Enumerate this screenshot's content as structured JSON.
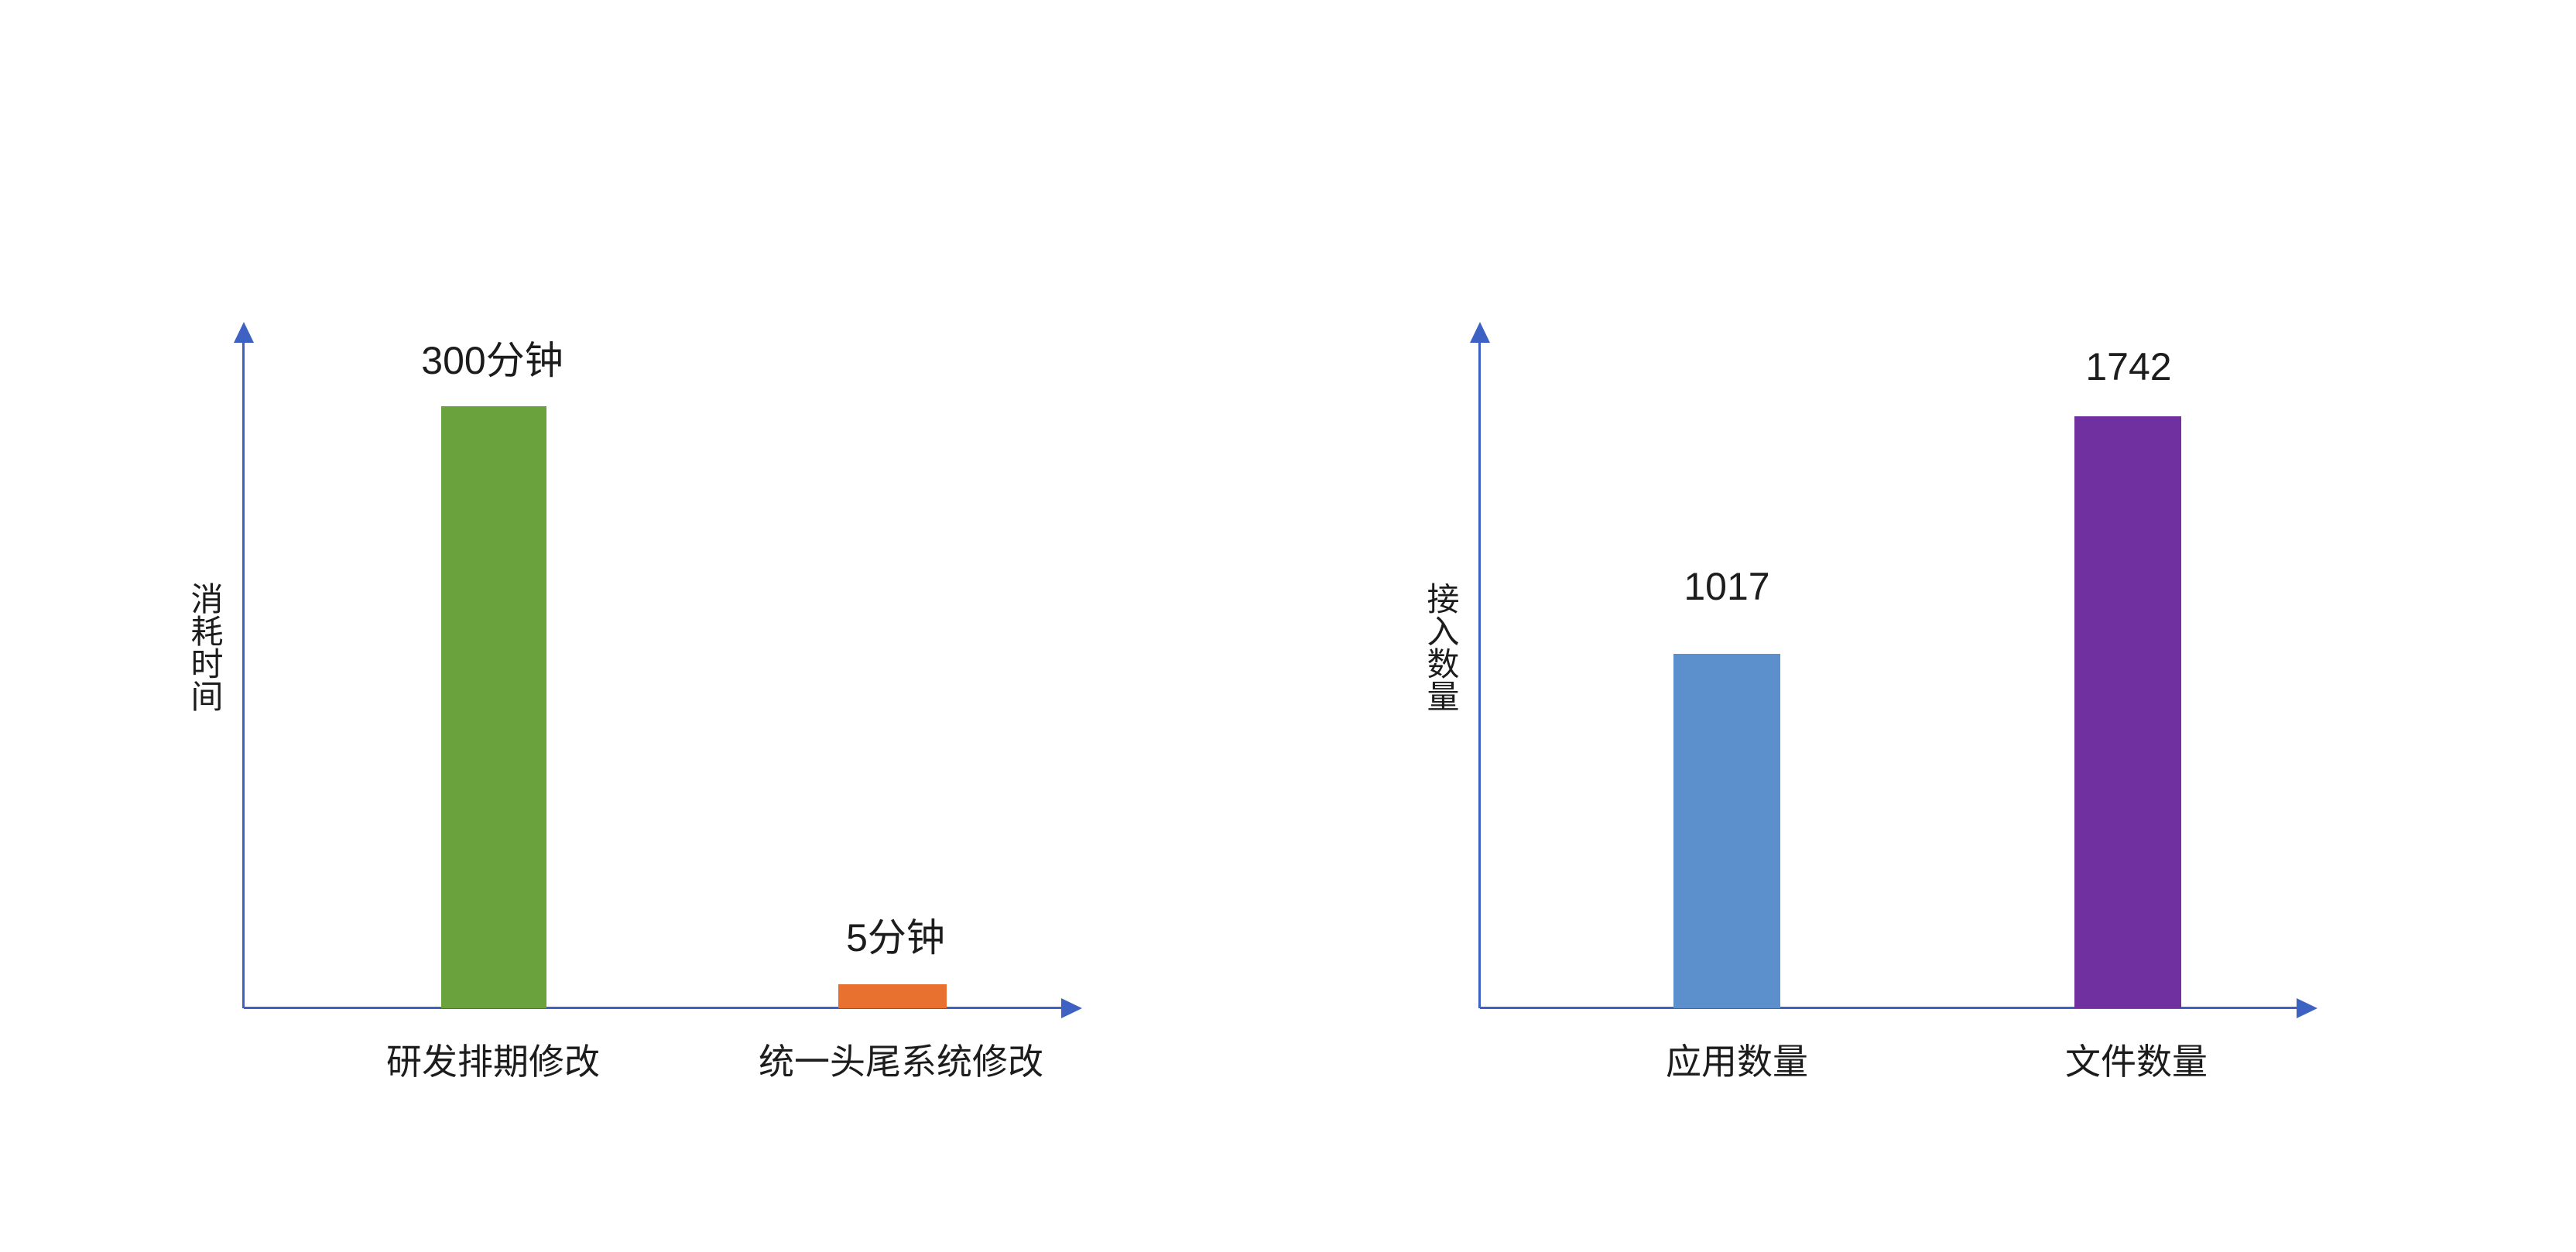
{
  "page": {
    "background": "#ffffff",
    "text_color": "#1c1c1c"
  },
  "colors": {
    "axis": "#3E62C4",
    "green_bar": "#6AA23E",
    "orange_bar": "#E8712F",
    "blue_bar": "#5B90CD",
    "purple_bar": "#7030A0"
  },
  "chart_data": [
    {
      "type": "bar",
      "title": "",
      "xlabel": "",
      "ylabel": "消耗时间",
      "categories": [
        "研发排期修改",
        "统一头尾系统修改"
      ],
      "values": [
        300,
        5
      ],
      "value_unit": "分钟",
      "value_labels": [
        "300分钟",
        "5分钟"
      ],
      "bar_colors": [
        "#6AA23E",
        "#E8712F"
      ],
      "axis_style": "arrow",
      "grid": false,
      "legend": false,
      "tick_labels": false
    },
    {
      "type": "bar",
      "title": "",
      "xlabel": "",
      "ylabel": "接入数量",
      "categories": [
        "应用数量",
        "文件数量"
      ],
      "values": [
        1017,
        1742
      ],
      "value_unit": "",
      "value_labels": [
        "1017",
        "1742"
      ],
      "bar_colors": [
        "#5B90CD",
        "#7030A0"
      ],
      "axis_style": "arrow",
      "grid": false,
      "legend": false,
      "tick_labels": false
    }
  ]
}
